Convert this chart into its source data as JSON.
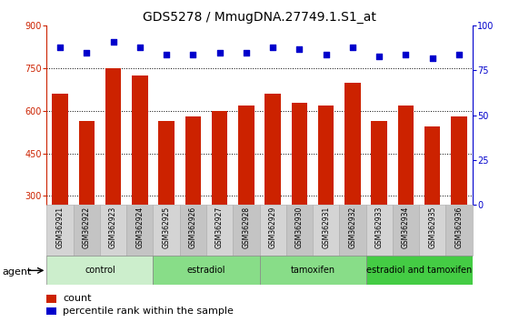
{
  "title": "GDS5278 / MmugDNA.27749.1.S1_at",
  "samples": [
    "GSM362921",
    "GSM362922",
    "GSM362923",
    "GSM362924",
    "GSM362925",
    "GSM362926",
    "GSM362927",
    "GSM362928",
    "GSM362929",
    "GSM362930",
    "GSM362931",
    "GSM362932",
    "GSM362933",
    "GSM362934",
    "GSM362935",
    "GSM362936"
  ],
  "counts": [
    660,
    565,
    750,
    725,
    565,
    580,
    600,
    620,
    660,
    630,
    620,
    700,
    565,
    620,
    545,
    580
  ],
  "percentiles": [
    88,
    85,
    91,
    88,
    84,
    84,
    85,
    85,
    88,
    87,
    84,
    88,
    83,
    84,
    82,
    84
  ],
  "bar_color": "#cc2200",
  "dot_color": "#0000cc",
  "ylim_left": [
    270,
    900
  ],
  "ylim_right": [
    0,
    100
  ],
  "yticks_left": [
    300,
    450,
    600,
    750,
    900
  ],
  "yticks_right": [
    0,
    25,
    50,
    75,
    100
  ],
  "groups": [
    {
      "label": "control",
      "start": 0,
      "end": 4
    },
    {
      "label": "estradiol",
      "start": 4,
      "end": 8
    },
    {
      "label": "tamoxifen",
      "start": 8,
      "end": 12
    },
    {
      "label": "estradiol and tamoxifen",
      "start": 12,
      "end": 16
    }
  ],
  "group_colors": [
    "#cceecc",
    "#88dd88",
    "#88dd88",
    "#44cc44"
  ],
  "agent_label": "agent",
  "legend_count_label": "count",
  "legend_pct_label": "percentile rank within the sample",
  "title_fontsize": 10,
  "tick_fontsize": 7,
  "label_fontsize": 8,
  "sample_fontsize": 5.5,
  "group_fontsize": 8
}
